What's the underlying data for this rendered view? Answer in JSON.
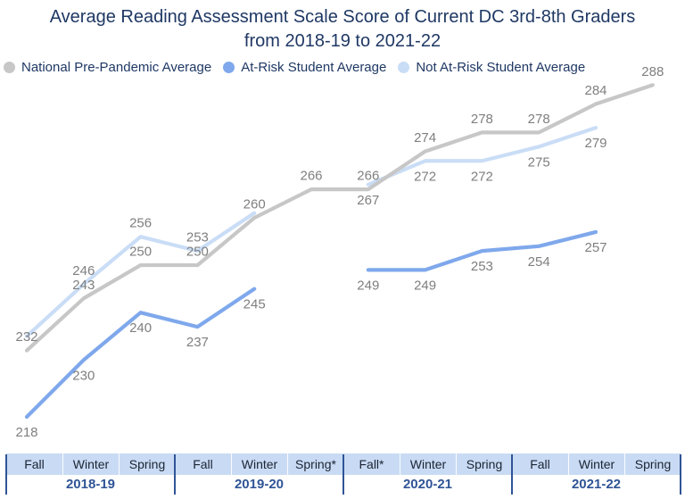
{
  "title": {
    "line1": "Average Reading Assessment Scale Score of Current DC 3rd-8th Graders",
    "line2": "from 2018-19 to 2021-22",
    "color": "#1F3864"
  },
  "legend": {
    "items": [
      {
        "label": "National Pre-Pandemic Average",
        "color": "#C7C7C7"
      },
      {
        "label": "At-Risk Student Average",
        "color": "#7FA8EC"
      },
      {
        "label": "Not At-Risk Student Average",
        "color": "#CADDF6"
      }
    ],
    "text_color": "#1F3864"
  },
  "chart_data": {
    "type": "line",
    "title": "Average Reading Assessment Scale Score of Current DC 3rd-8th Graders from 2018-19 to 2021-22",
    "x_categories": [
      "Fall 2018-19",
      "Winter 2018-19",
      "Spring 2018-19",
      "Fall 2019-20",
      "Winter 2019-20",
      "Spring* 2019-20",
      "Fall* 2020-21",
      "Winter 2020-21",
      "Spring 2020-21",
      "Fall 2021-22",
      "Winter 2021-22",
      "Spring 2021-22"
    ],
    "ylim": [
      210,
      295
    ],
    "grid": false,
    "y_axis_shown": false,
    "legend_position": "top-left",
    "label_color": "#7F7F7F",
    "series": [
      {
        "name": "National Pre-Pandemic Average",
        "color": "#C7C7C7",
        "points": [
          {
            "v": 232,
            "label": "232",
            "side": "above"
          },
          {
            "v": 243,
            "label": "243",
            "side": "above"
          },
          {
            "v": 250,
            "label": "250",
            "side": "above"
          },
          {
            "v": 250,
            "label": "250",
            "side": "above"
          },
          {
            "v": 260,
            "label": "260",
            "side": "above"
          },
          {
            "v": 266,
            "label": "266",
            "side": "above"
          },
          {
            "v": 266,
            "label": "266",
            "side": "above"
          },
          {
            "v": 274,
            "label": "274",
            "side": "above"
          },
          {
            "v": 278,
            "label": "278",
            "side": "above"
          },
          {
            "v": 278,
            "label": "278",
            "side": "above"
          },
          {
            "v": 284,
            "label": "284",
            "side": "above"
          },
          {
            "v": 288,
            "label": "288",
            "side": "above"
          }
        ]
      },
      {
        "name": "At-Risk Student Average",
        "color": "#7FA8EC",
        "points": [
          {
            "v": 218,
            "label": "218",
            "side": "below"
          },
          {
            "v": 230,
            "label": "230",
            "side": "below"
          },
          {
            "v": 240,
            "label": "240",
            "side": "below"
          },
          {
            "v": 237,
            "label": "237",
            "side": "below"
          },
          {
            "v": 245,
            "label": "245",
            "side": "below"
          },
          null,
          {
            "v": 249,
            "label": "249",
            "side": "below"
          },
          {
            "v": 249,
            "label": "249",
            "side": "below"
          },
          {
            "v": 253,
            "label": "253",
            "side": "below"
          },
          {
            "v": 254,
            "label": "254",
            "side": "below"
          },
          {
            "v": 257,
            "label": "257",
            "side": "below"
          },
          null
        ]
      },
      {
        "name": "Not At-Risk Student Average",
        "color": "#CADDF6",
        "points": [
          {
            "v": 235
          },
          {
            "v": 246,
            "label": "246",
            "side": "above"
          },
          {
            "v": 256,
            "label": "256",
            "side": "above"
          },
          {
            "v": 253,
            "label": "253",
            "side": "above"
          },
          {
            "v": 261
          },
          null,
          {
            "v": 267,
            "label": "267",
            "side": "below"
          },
          {
            "v": 272,
            "label": "272",
            "side": "below"
          },
          {
            "v": 272,
            "label": "272",
            "side": "below"
          },
          {
            "v": 275,
            "label": "275",
            "side": "below"
          },
          {
            "v": 279,
            "label": "279",
            "side": "below"
          },
          null
        ]
      }
    ],
    "draw_order": [
      2,
      0,
      1
    ]
  },
  "axis_table": {
    "seasons": [
      "Fall",
      "Winter",
      "Spring",
      "Fall",
      "Winter",
      "Spring*",
      "Fall*",
      "Winter",
      "Spring",
      "Fall",
      "Winter",
      "Spring"
    ],
    "years": [
      "2018-19",
      "2019-20",
      "2020-21",
      "2021-22"
    ],
    "band_bg": "#C9DBF4",
    "season_text_color": "#1B2433",
    "year_text_color": "#2F5496",
    "divider_color": "#2F5496"
  }
}
